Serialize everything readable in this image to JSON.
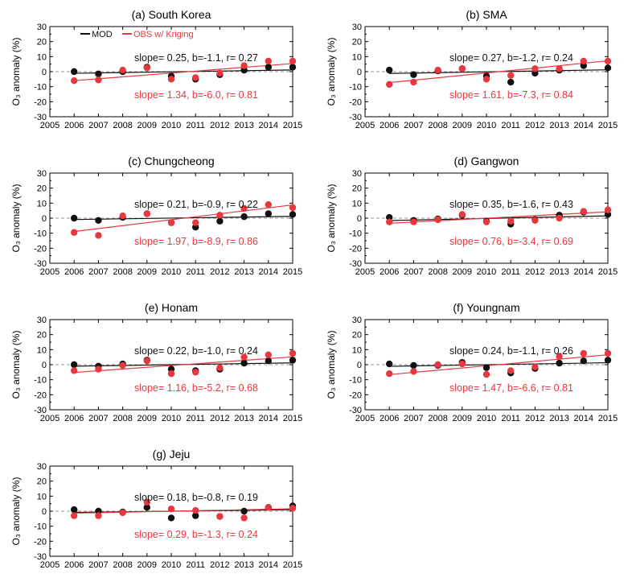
{
  "figure": {
    "ylabel": "O₃ anomaly (%)",
    "legend": {
      "mod_label": "MOD",
      "obs_label": "OBS w/ Kriging"
    },
    "colors": {
      "mod": "#111111",
      "obs": "#e8373f",
      "axis": "#000000",
      "zero": "#9a9a9a"
    }
  },
  "chart_data": [
    {
      "type": "scatter",
      "title": "(a) South Korea",
      "x": [
        2006,
        2007,
        2008,
        2009,
        2010,
        2011,
        2012,
        2013,
        2014,
        2015
      ],
      "xlim": [
        2005,
        2015
      ],
      "ylim": [
        -30,
        30
      ],
      "xticks": [
        2005,
        2006,
        2007,
        2008,
        2009,
        2010,
        2011,
        2012,
        2013,
        2014,
        2015
      ],
      "yticks": [
        -30,
        -20,
        -10,
        0,
        10,
        20,
        30
      ],
      "series": [
        {
          "name": "MOD",
          "values": [
            0,
            -1.5,
            0,
            3,
            -3,
            -5,
            -2,
            1,
            3,
            3
          ],
          "fit": [
            -1.1,
            1.15
          ]
        },
        {
          "name": "OBS w/ Kriging",
          "values": [
            -6,
            -5.5,
            1,
            2.5,
            -5,
            -4,
            -1,
            4,
            7,
            7
          ],
          "fit": [
            -6.0,
            5.4
          ]
        }
      ],
      "annotations": {
        "mod": "slope= 0.25, b=-1.1, r= 0.27",
        "obs": "slope= 1.34, b=-6.0, r= 0.81"
      },
      "show_legend": true
    },
    {
      "type": "scatter",
      "title": "(b) SMA",
      "x": [
        2006,
        2007,
        2008,
        2009,
        2010,
        2011,
        2012,
        2013,
        2014,
        2015
      ],
      "xlim": [
        2005,
        2015
      ],
      "ylim": [
        -30,
        30
      ],
      "xticks": [
        2005,
        2006,
        2007,
        2008,
        2009,
        2010,
        2011,
        2012,
        2013,
        2014,
        2015
      ],
      "yticks": [
        -30,
        -20,
        -10,
        0,
        10,
        20,
        30
      ],
      "series": [
        {
          "name": "MOD",
          "values": [
            1,
            -2,
            0.5,
            2,
            -3,
            -7,
            -1,
            1,
            4,
            2.5
          ],
          "fit": [
            -1.2,
            1.23
          ]
        },
        {
          "name": "OBS w/ Kriging",
          "values": [
            -8.5,
            -7,
            1,
            2,
            -5,
            -2.5,
            2,
            2,
            7,
            7
          ],
          "fit": [
            -7.3,
            7.2
          ]
        }
      ],
      "annotations": {
        "mod": "slope= 0.27, b=-1.2, r= 0.24",
        "obs": "slope= 1.61, b=-7.3, r= 0.84"
      },
      "show_legend": false
    },
    {
      "type": "scatter",
      "title": "(c) Chungcheong",
      "x": [
        2006,
        2007,
        2008,
        2009,
        2010,
        2011,
        2012,
        2013,
        2014,
        2015
      ],
      "xlim": [
        2005,
        2015
      ],
      "ylim": [
        -30,
        30
      ],
      "xticks": [
        2005,
        2006,
        2007,
        2008,
        2009,
        2010,
        2011,
        2012,
        2013,
        2014,
        2015
      ],
      "yticks": [
        -30,
        -20,
        -10,
        0,
        10,
        20,
        30
      ],
      "series": [
        {
          "name": "MOD",
          "values": [
            0,
            -1.5,
            0.5,
            3,
            -3,
            -6,
            -2,
            1,
            3,
            2.5
          ],
          "fit": [
            -0.9,
            1.2
          ]
        },
        {
          "name": "OBS w/ Kriging",
          "values": [
            -9.5,
            -11.5,
            1.5,
            3,
            -3,
            -3,
            2,
            6.5,
            9,
            7
          ],
          "fit": [
            -8.9,
            8.8
          ]
        }
      ],
      "annotations": {
        "mod": "slope= 0.21, b=-0.9, r= 0.22",
        "obs": "slope= 1.97, b=-8.9, r= 0.86"
      },
      "show_legend": false
    },
    {
      "type": "scatter",
      "title": "(d) Gangwon",
      "x": [
        2006,
        2007,
        2008,
        2009,
        2010,
        2011,
        2012,
        2013,
        2014,
        2015
      ],
      "xlim": [
        2005,
        2015
      ],
      "ylim": [
        -30,
        30
      ],
      "xticks": [
        2005,
        2006,
        2007,
        2008,
        2009,
        2010,
        2011,
        2012,
        2013,
        2014,
        2015
      ],
      "yticks": [
        -30,
        -20,
        -10,
        0,
        10,
        20,
        30
      ],
      "series": [
        {
          "name": "MOD",
          "values": [
            0.5,
            -1.5,
            -0.5,
            2,
            -2,
            -4,
            -1,
            2,
            4,
            2.5
          ],
          "fit": [
            -1.6,
            1.55
          ]
        },
        {
          "name": "OBS w/ Kriging",
          "values": [
            -2.5,
            -2.5,
            -1,
            2.5,
            -2.5,
            -2,
            -1.5,
            0,
            4.5,
            5.5
          ],
          "fit": [
            -3.4,
            4.2
          ]
        }
      ],
      "annotations": {
        "mod": "slope= 0.35, b=-1.6, r= 0.43",
        "obs": "slope= 0.76, b=-3.4, r= 0.69"
      },
      "show_legend": false
    },
    {
      "type": "scatter",
      "title": "(e) Honam",
      "x": [
        2006,
        2007,
        2008,
        2009,
        2010,
        2011,
        2012,
        2013,
        2014,
        2015
      ],
      "xlim": [
        2005,
        2015
      ],
      "ylim": [
        -30,
        30
      ],
      "xticks": [
        2005,
        2006,
        2007,
        2008,
        2009,
        2010,
        2011,
        2012,
        2013,
        2014,
        2015
      ],
      "yticks": [
        -30,
        -20,
        -10,
        0,
        10,
        20,
        30
      ],
      "series": [
        {
          "name": "MOD",
          "values": [
            0,
            -1,
            0.5,
            3,
            -3,
            -4,
            -3,
            1,
            2.5,
            3
          ],
          "fit": [
            -1.0,
            1.2
          ]
        },
        {
          "name": "OBS w/ Kriging",
          "values": [
            -4,
            -3,
            -0.5,
            2.5,
            -6,
            -5,
            -2,
            5,
            6.5,
            7.5
          ],
          "fit": [
            -5.2,
            5.2
          ]
        }
      ],
      "annotations": {
        "mod": "slope= 0.22, b=-1.0, r= 0.24",
        "obs": "slope= 1.16, b=-5.2, r= 0.68"
      },
      "show_legend": false
    },
    {
      "type": "scatter",
      "title": "(f) Youngnam",
      "x": [
        2006,
        2007,
        2008,
        2009,
        2010,
        2011,
        2012,
        2013,
        2014,
        2015
      ],
      "xlim": [
        2005,
        2015
      ],
      "ylim": [
        -30,
        30
      ],
      "xticks": [
        2005,
        2006,
        2007,
        2008,
        2009,
        2010,
        2011,
        2012,
        2013,
        2014,
        2015
      ],
      "yticks": [
        -30,
        -20,
        -10,
        0,
        10,
        20,
        30
      ],
      "series": [
        {
          "name": "MOD",
          "values": [
            0.5,
            -0.5,
            -0.5,
            1.5,
            -2,
            -5.5,
            -2.5,
            1,
            2.5,
            3
          ],
          "fit": [
            -1.1,
            1.3
          ]
        },
        {
          "name": "OBS w/ Kriging",
          "values": [
            -6,
            -4.5,
            0,
            0.5,
            -6.5,
            -4,
            -1.5,
            5.5,
            7.5,
            7.5
          ],
          "fit": [
            -6.6,
            6.6
          ]
        }
      ],
      "annotations": {
        "mod": "slope= 0.24, b=-1.1, r= 0.26",
        "obs": "slope= 1.47, b=-6.6, r= 0.81"
      },
      "show_legend": false
    },
    {
      "type": "scatter",
      "title": "(g) Jeju",
      "x": [
        2006,
        2007,
        2008,
        2009,
        2010,
        2011,
        2012,
        2013,
        2014,
        2015
      ],
      "xlim": [
        2005,
        2015
      ],
      "ylim": [
        -30,
        30
      ],
      "xticks": [
        2005,
        2006,
        2007,
        2008,
        2009,
        2010,
        2011,
        2012,
        2013,
        2014,
        2015
      ],
      "yticks": [
        -30,
        -20,
        -10,
        0,
        10,
        20,
        30
      ],
      "series": [
        {
          "name": "MOD",
          "values": [
            1,
            0,
            -0.5,
            2.5,
            -4.5,
            -3,
            -3.5,
            0,
            2.5,
            3.5
          ],
          "fit": [
            -0.8,
            1.0
          ]
        },
        {
          "name": "OBS w/ Kriging",
          "values": [
            -3,
            -3,
            -1,
            6,
            1.5,
            0.5,
            -3.5,
            -4.5,
            2.5,
            2
          ],
          "fit": [
            -1.3,
            1.6
          ]
        }
      ],
      "annotations": {
        "mod": "slope= 0.18, b=-0.8, r= 0.19",
        "obs": "slope= 0.29, b=-1.3, r= 0.24"
      },
      "show_legend": false
    }
  ]
}
